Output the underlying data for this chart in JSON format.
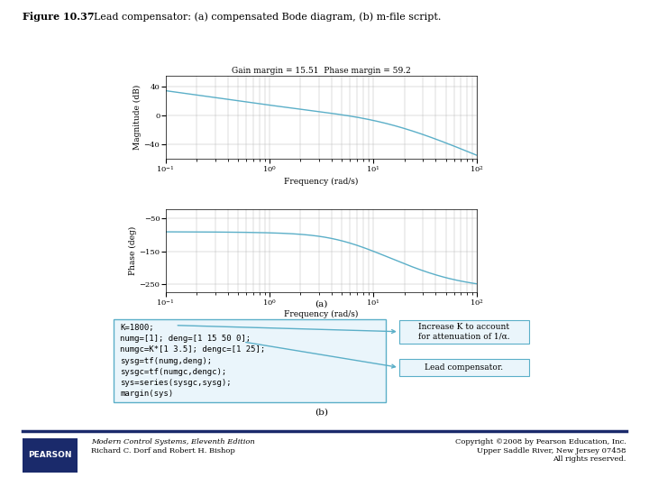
{
  "title_bold": "Figure 10.37",
  "title_normal": "  Lead compensator: (a) compensated Bode diagram, (b) m-file script.",
  "mag_title": "Gain margin = 15.51  Phase margin = 59.2",
  "mag_ylabel": "Magnitude (dB)",
  "phase_ylabel": "Phase (deg)",
  "freq_xlabel": "Frequency (rad/s)",
  "label_a": "(a)",
  "label_b": "(b)",
  "freq_range": [
    0.1,
    100
  ],
  "mag_ylim": [
    -60,
    55
  ],
  "phase_ylim": [
    -275,
    -20
  ],
  "mag_yticks": [
    -40,
    0,
    40
  ],
  "phase_yticks": [
    -250,
    -150,
    -50
  ],
  "line_color": "#5BAFC8",
  "grid_color": "#BBBBBB",
  "code_lines": [
    "K=1800;",
    "numg=[1]; deng=[1 15 50 0];",
    "numgc=K*[1 3.5]; dengc=[1 25];",
    "sysg=tf(numg,deng);",
    "sysgc=tf(numgc,dengc);",
    "sys=series(sysgc,sysg);",
    "margin(sys)"
  ],
  "annotation1_text": "Increase K to account\nfor attenuation of 1/α.",
  "annotation2_text": "Lead compensator.",
  "box_facecolor": "#EAF5FB",
  "box_edgecolor": "#5BAFC8",
  "ann_box_facecolor": "#EAF5FB",
  "ann_box_edgecolor": "#5BAFC8",
  "arrow_color": "#5BAFC8",
  "footer_line_color": "#1A2A6B",
  "pearson_box_color": "#1A2A6B",
  "pearson_text": "PEARSON",
  "footer_left1": "Modern Control Systems, Eleventh Edition",
  "footer_left2": "Richard C. Dorf and Robert H. Bishop",
  "footer_right1": "Copyright ©2008 by Pearson Education, Inc.",
  "footer_right2": "Upper Saddle River, New Jersey 07458",
  "footer_right3": "All rights reserved."
}
